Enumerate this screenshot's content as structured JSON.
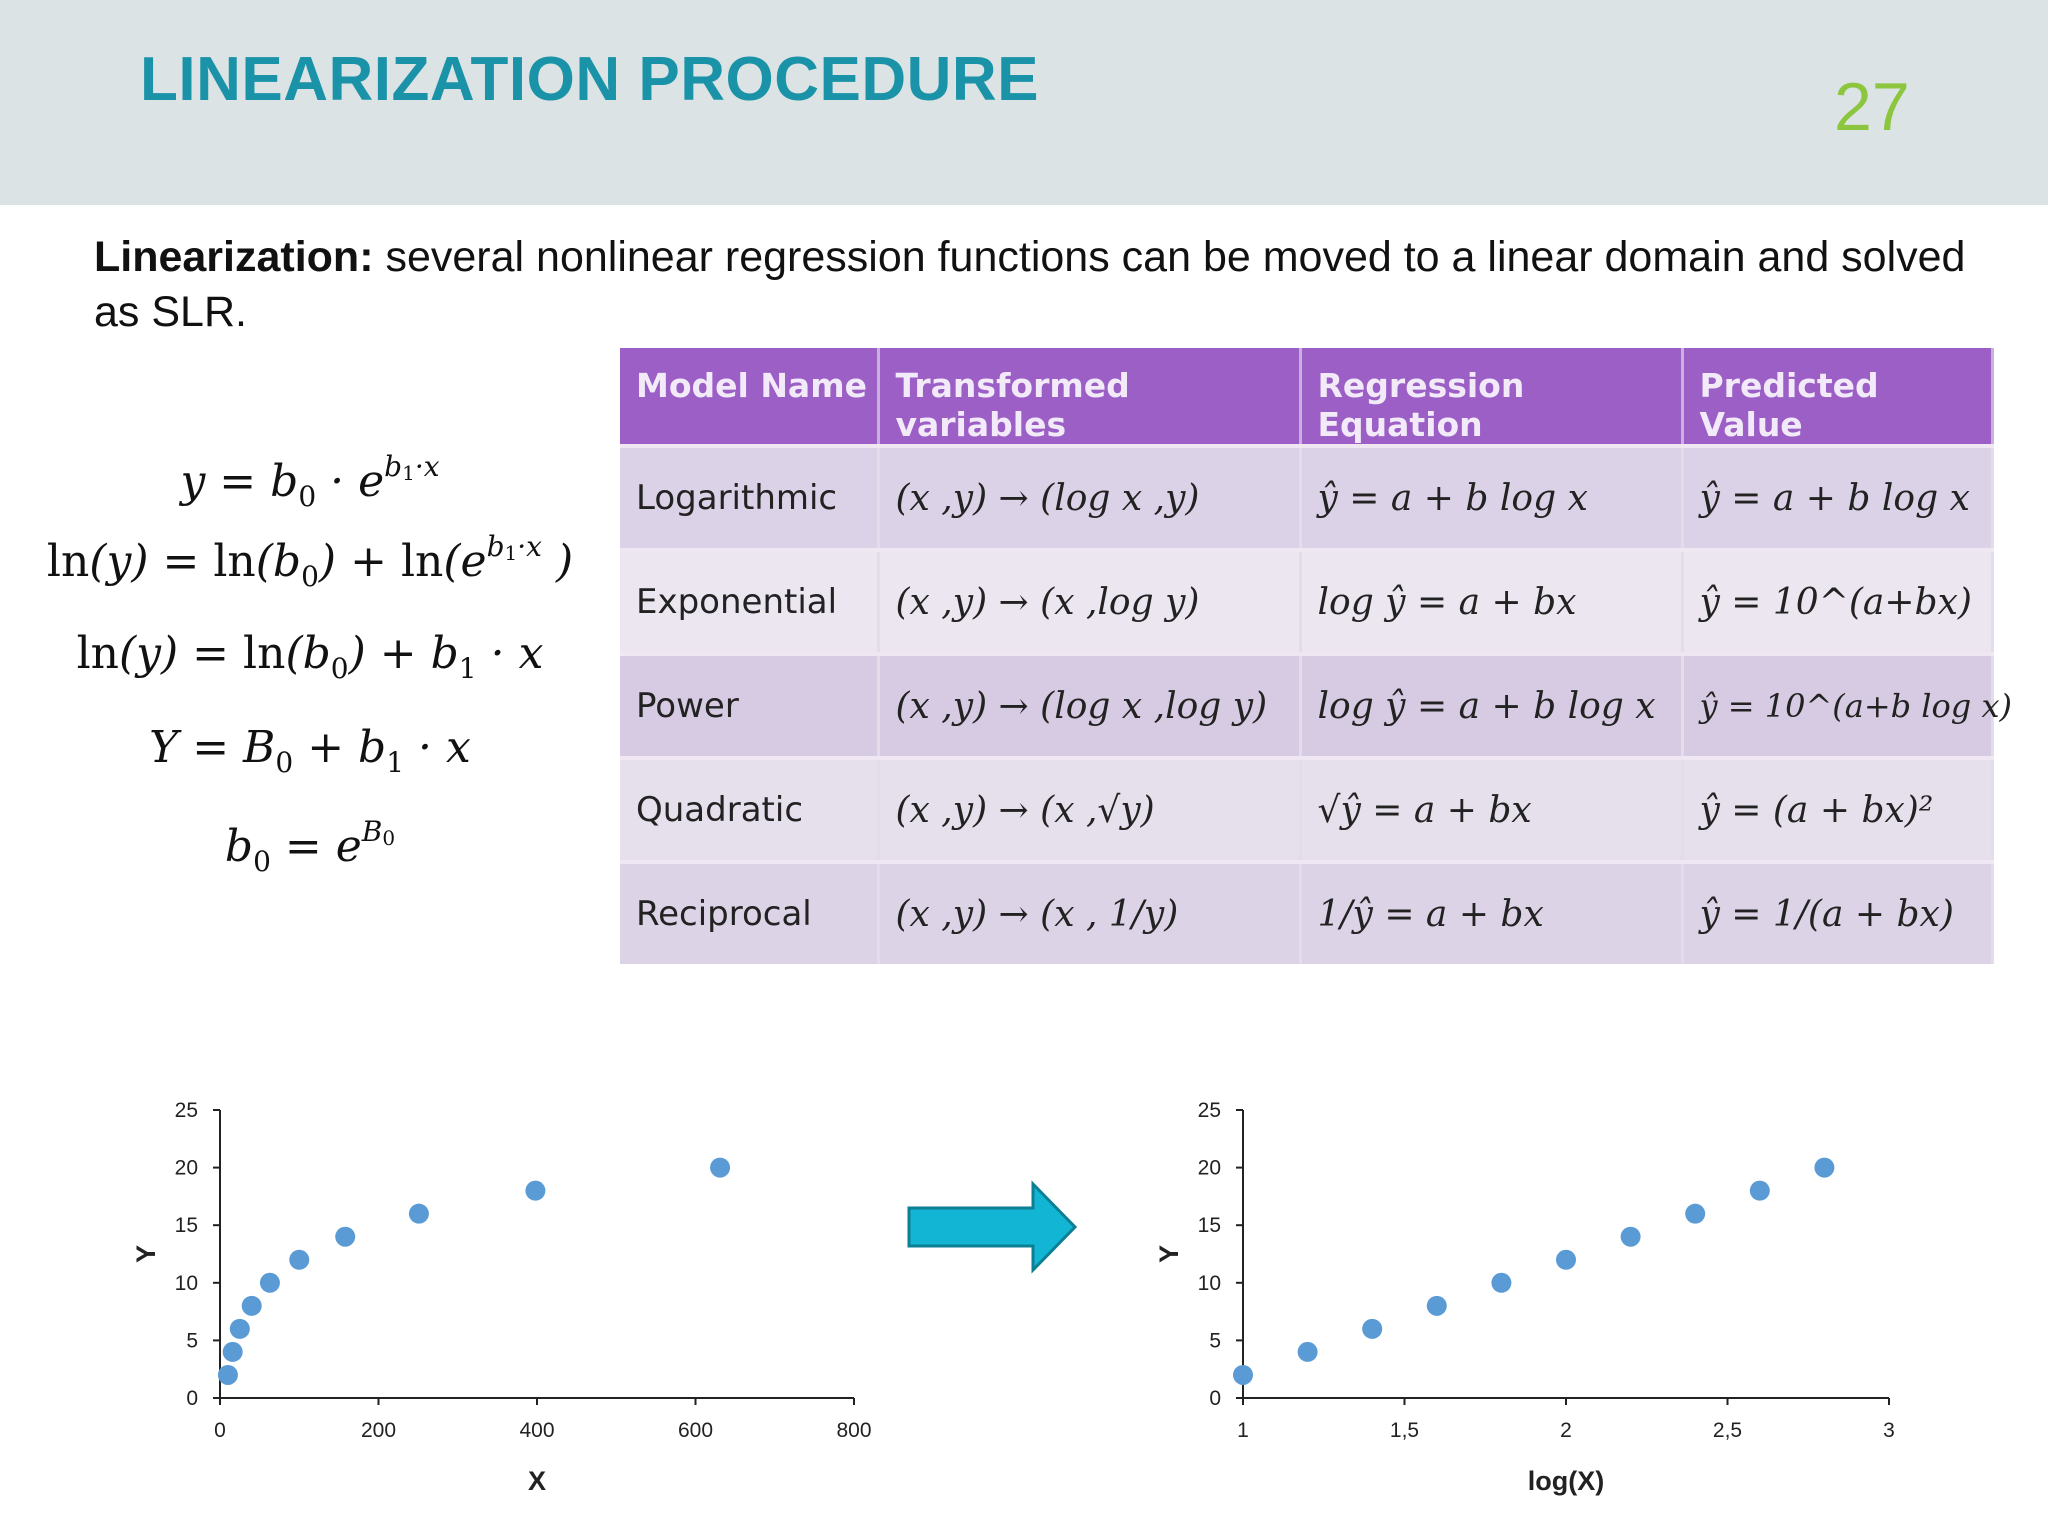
{
  "header": {
    "title": "LINEARIZATION PROCEDURE",
    "page_number": "27"
  },
  "intro": {
    "term": "Linearization:",
    "text": " several nonlinear regression functions can be moved to a linear domain and solved as SLR."
  },
  "equations": [
    "y = b0 · e^(b1·x)",
    "ln(y) = ln(b0) + ln(e^(b1·x))",
    "ln(y) = ln(b0) + b1 · x",
    "Y = B0 + b1 · x",
    "b0 = e^(B0)"
  ],
  "table": {
    "headers": [
      "Model Name",
      "Transformed variables",
      "Regression Equation",
      "Predicted Value"
    ],
    "rows": [
      {
        "model": "Logarithmic",
        "transform": "(x ,y) → (log x ,y)",
        "regression": "ŷ = a + b log x",
        "predicted": "ŷ = a + b log x"
      },
      {
        "model": "Exponential",
        "transform": "(x ,y) → (x ,log y)",
        "regression": "log ŷ = a + bx",
        "predicted": "ŷ = 10^(a+bx)"
      },
      {
        "model": "Power",
        "transform": "(x ,y) → (log x ,log y)",
        "regression": "log ŷ = a + b log x",
        "predicted": "ŷ = 10^(a+b log x)"
      },
      {
        "model": "Quadratic",
        "transform": "(x ,y) → (x ,√y)",
        "regression": "√ŷ = a + bx",
        "predicted": "ŷ = (a + bx)²"
      },
      {
        "model": "Reciprocal",
        "transform": "(x ,y) → (x , 1/y)",
        "regression": "1/ŷ = a + bx",
        "predicted": "ŷ = 1/(a + bx)"
      }
    ]
  },
  "chart_data": [
    {
      "type": "scatter",
      "title": "",
      "xlabel": "X",
      "ylabel": "Y",
      "xlim": [
        0,
        800
      ],
      "ylim": [
        0,
        25
      ],
      "xticks": [
        0,
        200,
        400,
        600,
        800
      ],
      "xtick_labels": [
        "0",
        "200",
        "400",
        "600",
        "800"
      ],
      "yticks": [
        0,
        5,
        10,
        15,
        20,
        25
      ],
      "ytick_labels": [
        "0",
        "5",
        "10",
        "15",
        "20",
        "25"
      ],
      "grid": false,
      "series": [
        {
          "color": "#5b9bd5",
          "x": [
            10,
            16,
            25,
            40,
            63,
            100,
            158,
            251,
            398,
            631
          ],
          "y": [
            2,
            4,
            6,
            8,
            10,
            12,
            14,
            16,
            18,
            20
          ]
        }
      ]
    },
    {
      "type": "scatter",
      "title": "",
      "xlabel": "log(X)",
      "ylabel": "Y",
      "xlim": [
        1,
        3
      ],
      "ylim": [
        0,
        25
      ],
      "xticks": [
        1,
        1.5,
        2,
        2.5,
        3
      ],
      "xtick_labels": [
        "1",
        "1,5",
        "2",
        "2,5",
        "3"
      ],
      "yticks": [
        0,
        5,
        10,
        15,
        20,
        25
      ],
      "ytick_labels": [
        "0",
        "5",
        "10",
        "15",
        "20",
        "25"
      ],
      "grid": false,
      "series": [
        {
          "color": "#5b9bd5",
          "x": [
            1,
            1.2,
            1.4,
            1.6,
            1.8,
            2,
            2.2,
            2.4,
            2.6,
            2.8
          ],
          "y": [
            2,
            4,
            6,
            8,
            10,
            12,
            14,
            16,
            18,
            20
          ]
        }
      ]
    }
  ],
  "arrow": {
    "icon": "right-arrow-icon",
    "color": "#12b5d3"
  }
}
